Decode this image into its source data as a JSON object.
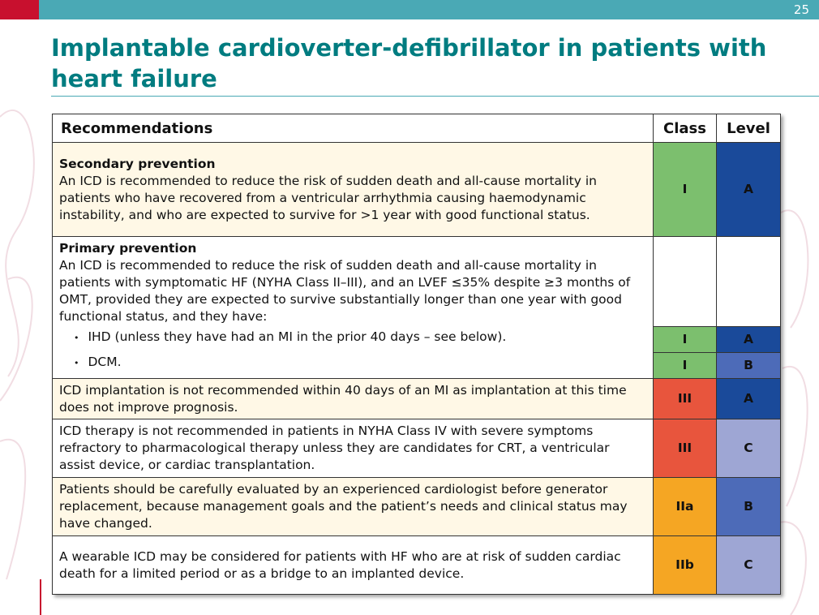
{
  "header": {
    "page_number": "25",
    "title": "Implantable cardioverter-defibrillator in patients with heart failure"
  },
  "table": {
    "columns": [
      "Recommendations",
      "Class",
      "Level"
    ],
    "rows": [
      {
        "heading": "Secondary prevention",
        "text": "An ICD is recommended to reduce the risk of sudden death and all-cause mortality in patients who have recovered from a ventricular arrhythmia causing haemodynamic instability, and who are expected to survive for >1 year with good functional status.",
        "class": "I",
        "level": "A"
      },
      {
        "heading": "Primary prevention",
        "text": "An ICD is recommended to reduce the risk of sudden death and all-cause mortality in patients with symptomatic HF (NYHA Class II–III), and an LVEF ≤35% despite ≥3 months of OMT, provided they are expected to survive substantially longer than one year with good functional status, and they have:",
        "sub_items": [
          {
            "text": "IHD (unless they have had an MI in the prior 40 days – see below).",
            "class": "I",
            "level": "A"
          },
          {
            "text": "DCM.",
            "class": "I",
            "level": "B"
          }
        ]
      },
      {
        "text": "ICD implantation is not recommended within 40 days of an MI as implantation at this time does not improve prognosis.",
        "class": "III",
        "level": "A"
      },
      {
        "text": "ICD therapy is not recommended in patients in NYHA Class IV with severe symptoms refractory to pharmacological therapy unless they are candidates for CRT, a ventricular assist device, or cardiac transplantation.",
        "class": "III",
        "level": "C"
      },
      {
        "text": "Patients should be carefully evaluated by an experienced cardiologist before generator replacement, because management goals and the patient’s needs and clinical status may have changed.",
        "class": "IIa",
        "level": "B"
      },
      {
        "text": "A wearable ICD may be considered for patients with HF who are at risk of sudden cardiac death for a limited period or as a bridge to an implanted device.",
        "class": "IIb",
        "level": "C"
      }
    ]
  },
  "colors": {
    "accent_teal": "#007c80",
    "bar_teal": "#4aa9b5",
    "bar_red": "#c8102e",
    "class_I": "#7cbf6e",
    "class_III": "#e8553d",
    "class_IIa_IIb": "#f5a623",
    "level_A": "#1a4a9a",
    "level_B": "#4d6bb8",
    "level_C": "#9ea6d4",
    "row_highlight": "#fff8e6"
  }
}
